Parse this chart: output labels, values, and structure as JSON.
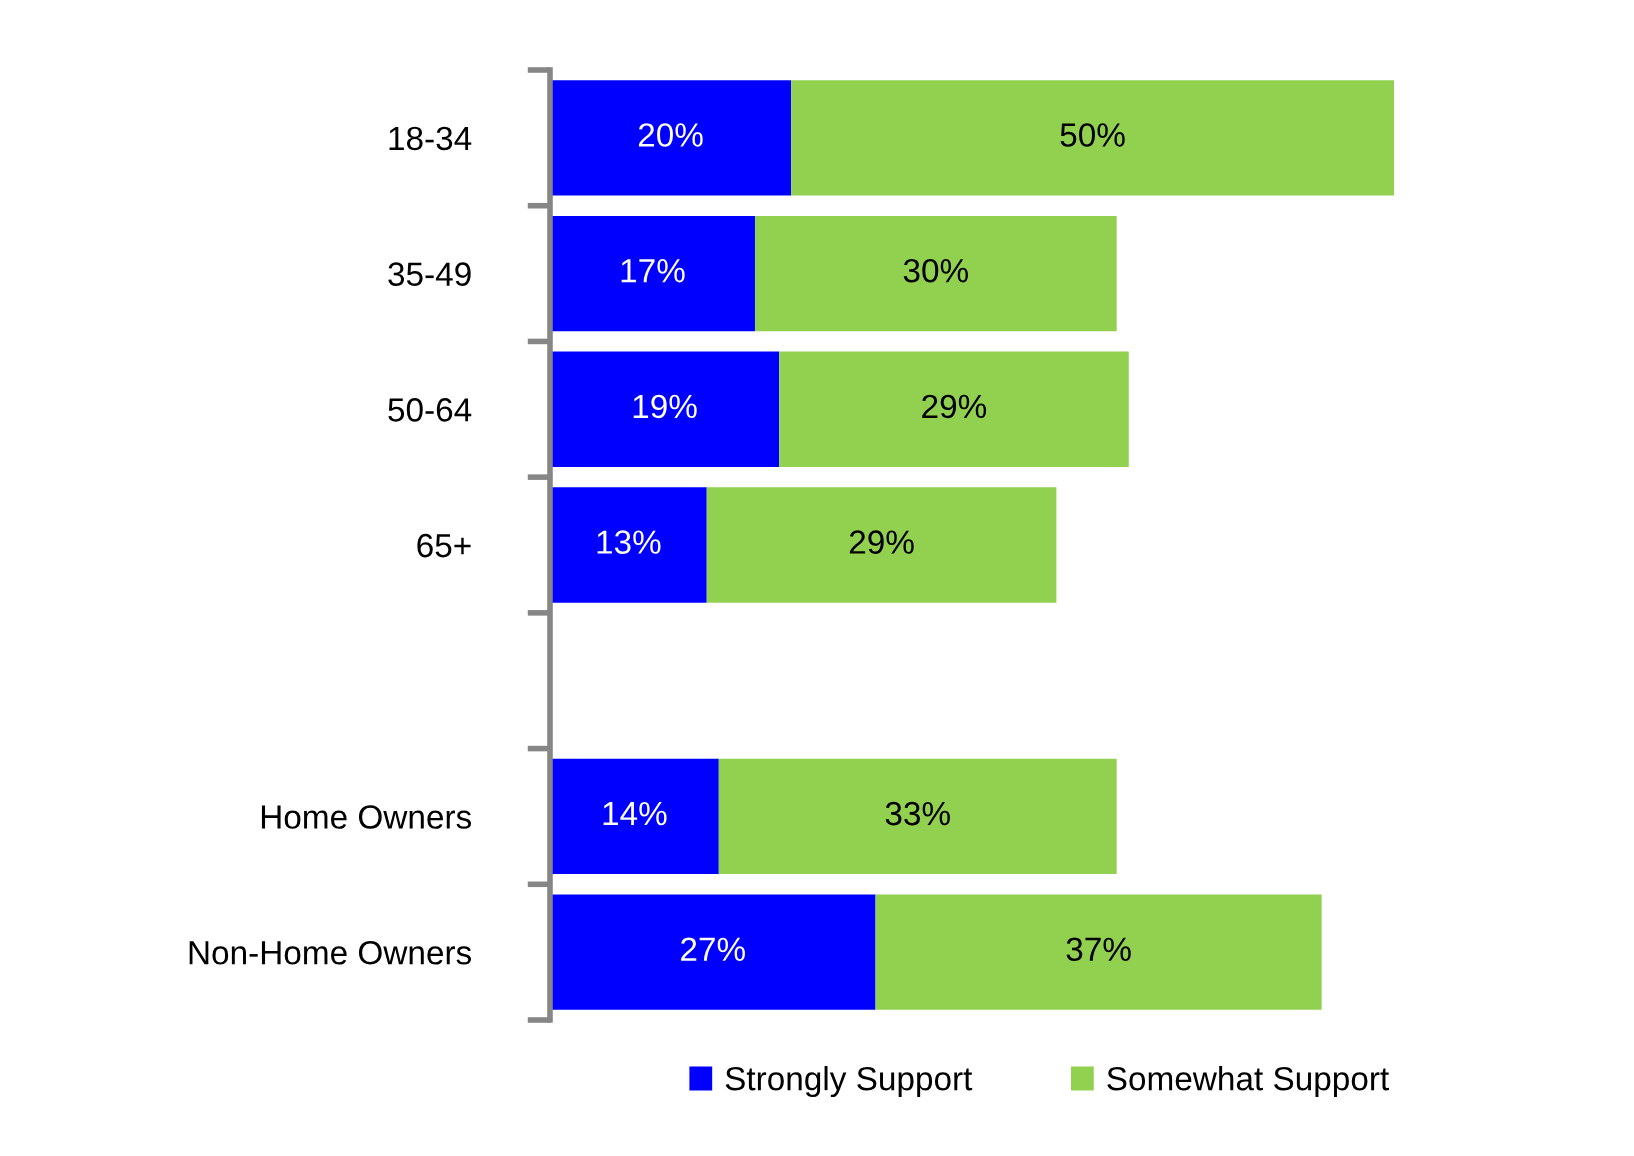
{
  "chart_data": {
    "type": "bar",
    "orientation": "horizontal",
    "stacked": true,
    "categories": [
      "18-34",
      "35-49",
      "50-64",
      "65+",
      null,
      "Home Owners",
      "Non-Home Owners"
    ],
    "series": [
      {
        "name": "Strongly Support",
        "color": "#0000ff",
        "values": [
          20,
          17,
          19,
          13,
          null,
          14,
          27
        ],
        "value_labels": [
          "20%",
          "17%",
          "19%",
          "13%",
          null,
          "14%",
          "27%"
        ]
      },
      {
        "name": "Somewhat Support",
        "color": "#92d050",
        "values": [
          50,
          30,
          29,
          29,
          null,
          33,
          37
        ],
        "value_labels": [
          "50%",
          "30%",
          "29%",
          "29%",
          null,
          "33%",
          "37%"
        ]
      }
    ],
    "grid": false,
    "legend": "bottom"
  }
}
